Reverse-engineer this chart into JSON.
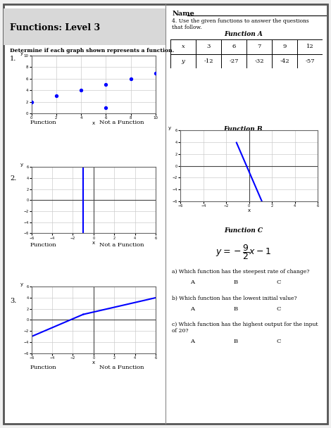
{
  "title": "Functions: Level 3",
  "left_instruction": "Determine if each graph shown represents a function.",
  "right_name_label": "Name",
  "right_instruction_1": "4. Use the given functions to answer the questions",
  "right_instruction_2": "that follow.",
  "func_a_title": "Function A",
  "func_a_x": [
    "x",
    "3",
    "6",
    "7",
    "9",
    "12"
  ],
  "func_a_y": [
    "y",
    "-12",
    "-27",
    "-32",
    "-42",
    "-57"
  ],
  "func_b_title": "Function B",
  "func_c_title": "Function C",
  "func_c_eq": "$y = -\\dfrac{9}{2}x - 1$",
  "q_a": "a) Which function has the steepest rate of change?",
  "q_b": "b) Which function has the lowest initial value?",
  "q_c1": "c) Which function has the highest output for the input",
  "q_c2": "of 20?",
  "abc": [
    "A",
    "B",
    "C"
  ],
  "scatter1_pts_x": [
    0,
    2,
    4,
    6,
    8,
    10,
    6
  ],
  "scatter1_pts_y": [
    2,
    3,
    4,
    5,
    6,
    7,
    1
  ],
  "graph_blue": "#0000FF",
  "bg_color": "#FFFFFF",
  "border_color": "#555555",
  "grid_color": "#CCCCCC",
  "axis_color": "#444444",
  "title_bg": "#D8D8D8"
}
